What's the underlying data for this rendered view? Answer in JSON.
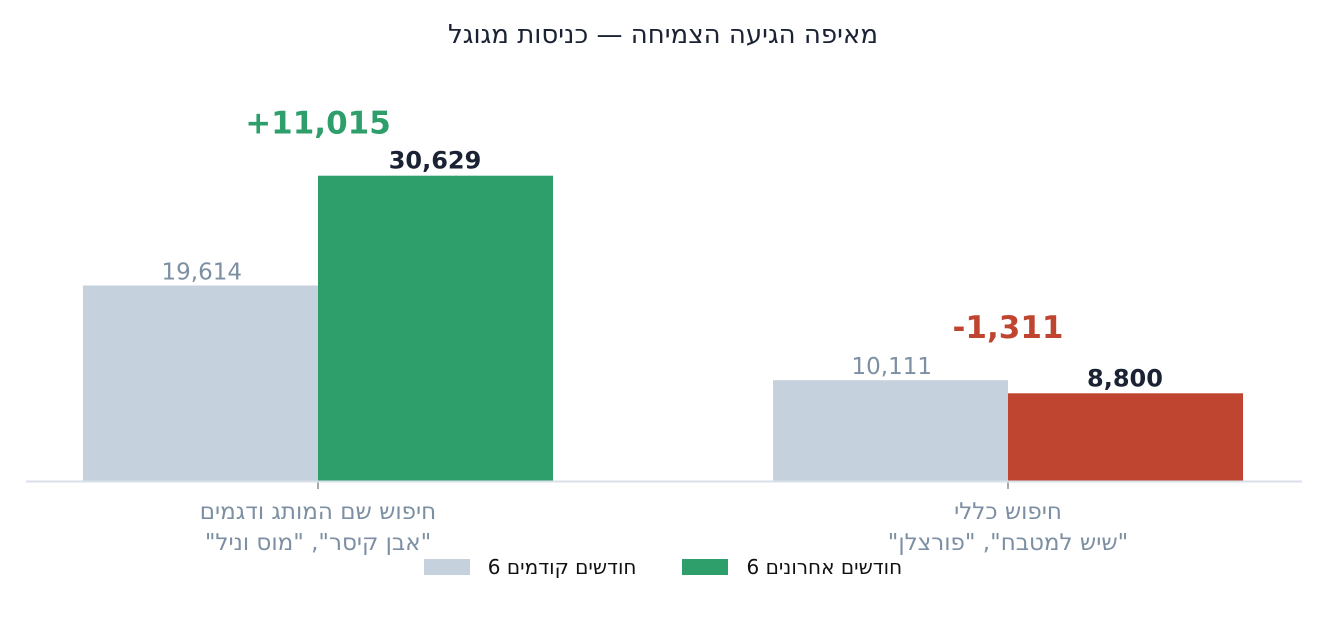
{
  "chart_data": {
    "type": "bar",
    "title": "מאיפה הגיעה הצמיחה — כניסות מגוגל",
    "categories": [
      [
        "חיפוש שם המותג ודגמים",
        "\"אבן קיסר\", \"מוס וניל\""
      ],
      [
        "חיפוש כללי",
        "\"שיש למטבח\", \"פורצלן\""
      ]
    ],
    "series": [
      {
        "name": "6 חודשים קודמים",
        "values": [
          19614,
          10111
        ],
        "labels": [
          "19,614",
          "10,111"
        ],
        "color": "#c5d2de"
      },
      {
        "name": "6 חודשים אחרונים",
        "values": [
          30629,
          8800
        ],
        "labels": [
          "30,629",
          "8,800"
        ],
        "colors": [
          "#2e9f6b",
          "#c04530"
        ]
      }
    ],
    "changes": [
      {
        "label": "+11,015",
        "color": "#2e9f6b"
      },
      {
        "label": "-1,311",
        "color": "#c04530"
      }
    ],
    "ylim": [
      0,
      31000
    ],
    "legend_position": "bottom-center",
    "grid": false
  }
}
